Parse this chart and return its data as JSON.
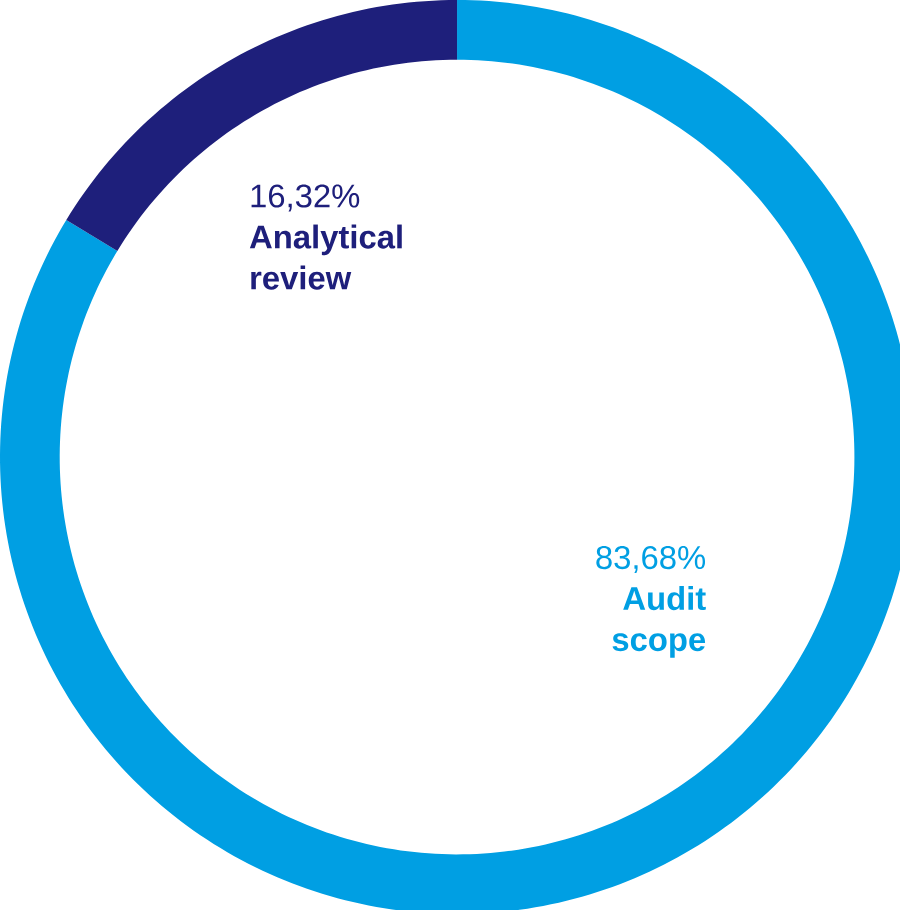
{
  "chart_data": {
    "type": "donut",
    "categories": [
      "Audit scope",
      "Analytical review"
    ],
    "values": [
      83.68,
      16.32
    ],
    "colors": [
      "#009fe3",
      "#1e1f7b"
    ],
    "value_labels": [
      "83,68%",
      "16,32%"
    ]
  }
}
